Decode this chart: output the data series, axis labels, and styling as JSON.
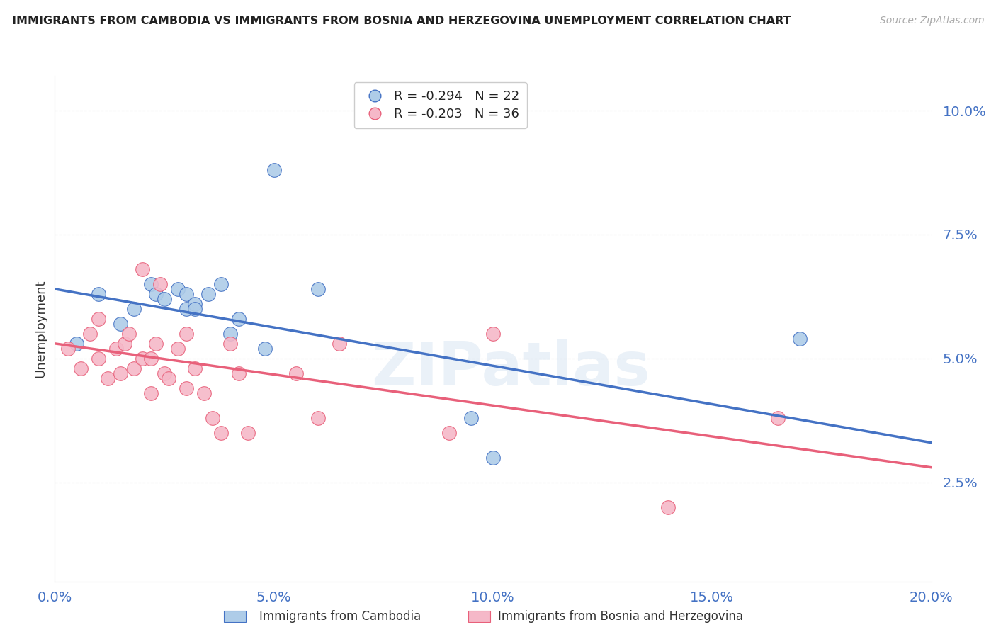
{
  "title": "IMMIGRANTS FROM CAMBODIA VS IMMIGRANTS FROM BOSNIA AND HERZEGOVINA UNEMPLOYMENT CORRELATION CHART",
  "source": "Source: ZipAtlas.com",
  "ylabel": "Unemployment",
  "yticks": [
    0.025,
    0.05,
    0.075,
    0.1
  ],
  "ytick_labels": [
    "2.5%",
    "5.0%",
    "7.5%",
    "10.0%"
  ],
  "xlim": [
    0.0,
    0.2
  ],
  "ylim": [
    0.005,
    0.107
  ],
  "legend1_label": "R = -0.294   N = 22",
  "legend2_label": "R = -0.203   N = 36",
  "series1_color": "#aecce8",
  "series2_color": "#f5b8c8",
  "line1_color": "#4472c4",
  "line2_color": "#e8607a",
  "background_color": "#ffffff",
  "grid_color": "#cccccc",
  "title_color": "#222222",
  "source_color": "#aaaaaa",
  "axis_label_color": "#4472c4",
  "series1_x": [
    0.005,
    0.01,
    0.015,
    0.018,
    0.022,
    0.023,
    0.025,
    0.028,
    0.03,
    0.03,
    0.032,
    0.032,
    0.035,
    0.038,
    0.04,
    0.042,
    0.048,
    0.05,
    0.06,
    0.095,
    0.1,
    0.17
  ],
  "series1_y": [
    0.053,
    0.063,
    0.057,
    0.06,
    0.065,
    0.063,
    0.062,
    0.064,
    0.06,
    0.063,
    0.061,
    0.06,
    0.063,
    0.065,
    0.055,
    0.058,
    0.052,
    0.088,
    0.064,
    0.038,
    0.03,
    0.054
  ],
  "series2_x": [
    0.003,
    0.006,
    0.008,
    0.01,
    0.01,
    0.012,
    0.014,
    0.015,
    0.016,
    0.017,
    0.018,
    0.02,
    0.02,
    0.022,
    0.022,
    0.023,
    0.024,
    0.025,
    0.026,
    0.028,
    0.03,
    0.03,
    0.032,
    0.034,
    0.036,
    0.038,
    0.04,
    0.042,
    0.044,
    0.055,
    0.06,
    0.065,
    0.09,
    0.1,
    0.14,
    0.165
  ],
  "series2_y": [
    0.052,
    0.048,
    0.055,
    0.05,
    0.058,
    0.046,
    0.052,
    0.047,
    0.053,
    0.055,
    0.048,
    0.05,
    0.068,
    0.043,
    0.05,
    0.053,
    0.065,
    0.047,
    0.046,
    0.052,
    0.044,
    0.055,
    0.048,
    0.043,
    0.038,
    0.035,
    0.053,
    0.047,
    0.035,
    0.047,
    0.038,
    0.053,
    0.035,
    0.055,
    0.02,
    0.038
  ],
  "line1_x": [
    0.0,
    0.2
  ],
  "line1_y": [
    0.064,
    0.033
  ],
  "line2_x": [
    0.0,
    0.2
  ],
  "line2_y": [
    0.053,
    0.028
  ]
}
